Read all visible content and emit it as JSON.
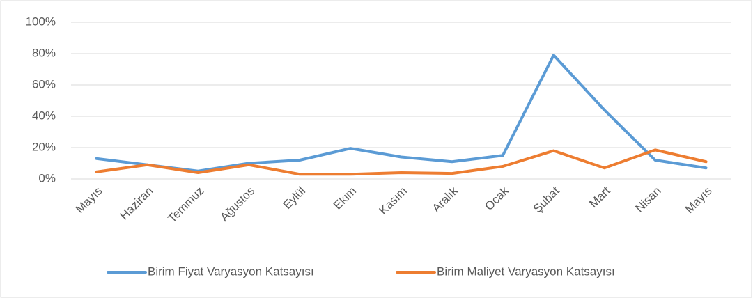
{
  "chart_data": {
    "type": "line",
    "categories": [
      "Mayıs",
      "Haziran",
      "Temmuz",
      "Ağustos",
      "Eylül",
      "Ekim",
      "Kasım",
      "Aralık",
      "Ocak",
      "Şubat",
      "Mart",
      "Nisan",
      "Mayıs"
    ],
    "series": [
      {
        "name": "Birim Fiyat Varyasyon Katsayısı",
        "color": "#5b9bd5",
        "values": [
          13,
          9,
          5,
          10,
          12,
          19.5,
          14,
          11,
          15,
          79,
          44,
          12,
          7
        ]
      },
      {
        "name": "Birim Maliyet Varyasyon Katsayısı",
        "color": "#ed7d31",
        "values": [
          4.5,
          9,
          4,
          9,
          3,
          3,
          4,
          3.5,
          8,
          18,
          7,
          18.5,
          11
        ]
      }
    ],
    "ylim": [
      0,
      100
    ],
    "yticks": [
      {
        "value": 0,
        "label": "0%"
      },
      {
        "value": 20,
        "label": "20%"
      },
      {
        "value": 40,
        "label": "40%"
      },
      {
        "value": 60,
        "label": "60%"
      },
      {
        "value": 80,
        "label": "80%"
      },
      {
        "value": 100,
        "label": "100%"
      }
    ],
    "grid": true,
    "legend": "bottom"
  }
}
